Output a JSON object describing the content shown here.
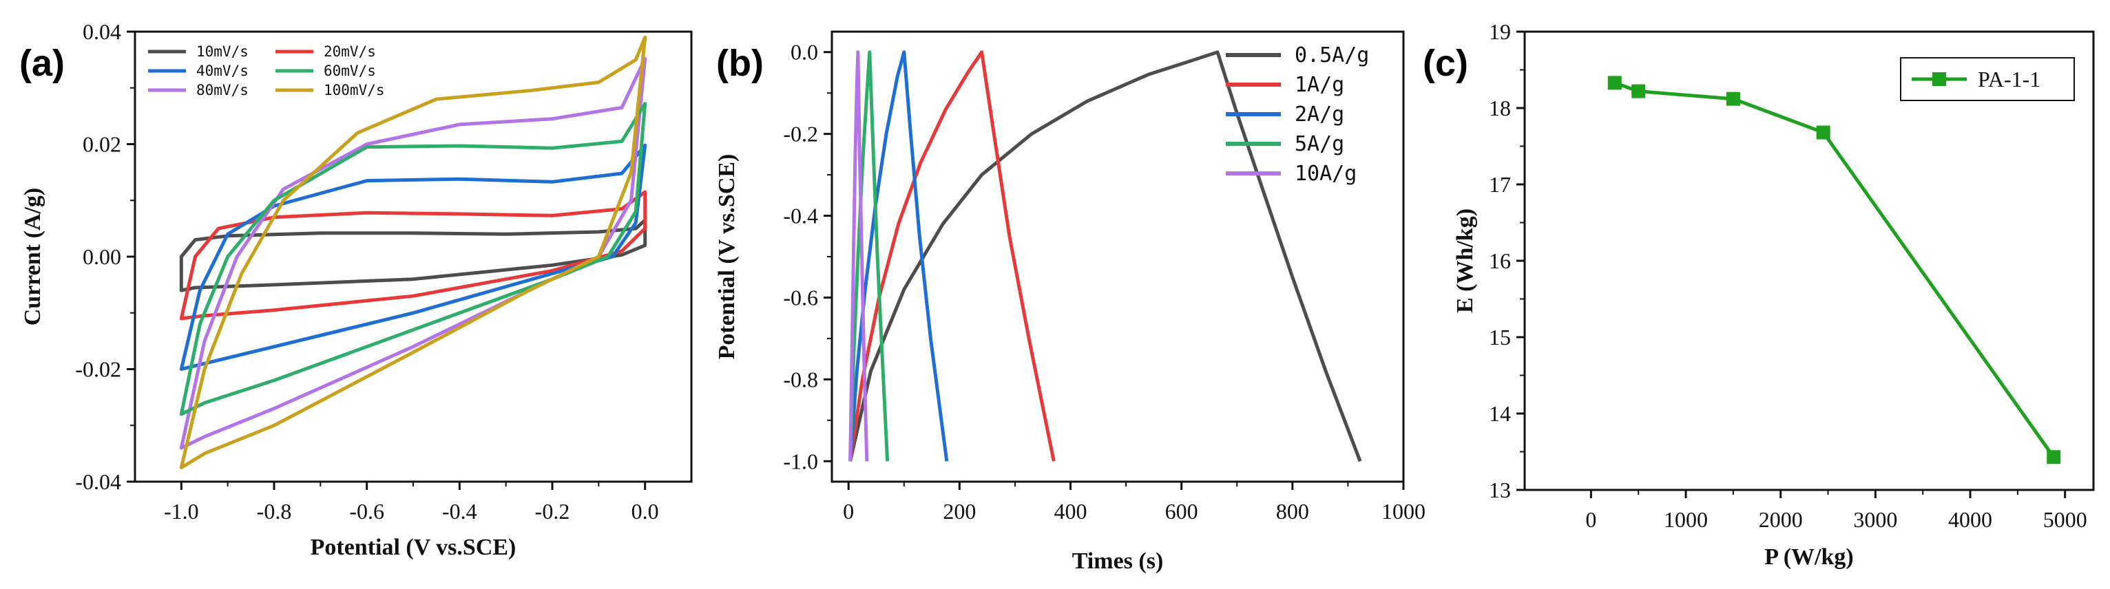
{
  "figure": {
    "panels": [
      "(a)",
      "(b)",
      "(c)"
    ]
  },
  "chart_data": [
    {
      "id": "a",
      "type": "line",
      "panel_label": "(a)",
      "title": "",
      "xlabel": "Potential (V vs.SCE)",
      "ylabel": "Current (A/g)",
      "xlim": [
        -1.1,
        0.1
      ],
      "ylim": [
        -0.04,
        0.04
      ],
      "xticks": [
        -1.0,
        -0.8,
        -0.6,
        -0.4,
        -0.2,
        0.0
      ],
      "xtick_labels": [
        "-1.0",
        "-0.8",
        "-0.6",
        "-0.4",
        "-0.2",
        "0.0"
      ],
      "yticks": [
        -0.04,
        -0.02,
        0.0,
        0.02,
        0.04
      ],
      "ytick_labels": [
        "-0.04",
        "-0.02",
        "0.00",
        "0.02",
        "0.04"
      ],
      "legend_position": "top-left",
      "series": [
        {
          "name": "10mV/s",
          "color": "#4d4d4d",
          "upper": [
            [
              -1.0,
              0.0
            ],
            [
              -0.97,
              0.003
            ],
            [
              -0.9,
              0.0037
            ],
            [
              -0.7,
              0.0042
            ],
            [
              -0.5,
              0.0042
            ],
            [
              -0.3,
              0.004
            ],
            [
              -0.1,
              0.0044
            ],
            [
              -0.02,
              0.005
            ],
            [
              0.0,
              0.0065
            ]
          ],
          "lower": [
            [
              0.0,
              0.0065
            ],
            [
              0.0,
              0.002
            ],
            [
              -0.05,
              0.0003
            ],
            [
              -0.2,
              -0.0015
            ],
            [
              -0.5,
              -0.004
            ],
            [
              -0.8,
              -0.005
            ],
            [
              -0.97,
              -0.0055
            ],
            [
              -1.0,
              -0.006
            ],
            [
              -1.0,
              0.0
            ]
          ]
        },
        {
          "name": "20mV/s",
          "color": "#e8393a",
          "upper": [
            [
              -1.0,
              -0.011
            ],
            [
              -0.97,
              0.0
            ],
            [
              -0.92,
              0.005
            ],
            [
              -0.8,
              0.007
            ],
            [
              -0.6,
              0.0078
            ],
            [
              -0.4,
              0.0076
            ],
            [
              -0.2,
              0.0073
            ],
            [
              -0.05,
              0.0085
            ],
            [
              0.0,
              0.0115
            ]
          ],
          "lower": [
            [
              0.0,
              0.0115
            ],
            [
              0.0,
              0.005
            ],
            [
              -0.05,
              0.001
            ],
            [
              -0.2,
              -0.0025
            ],
            [
              -0.5,
              -0.007
            ],
            [
              -0.8,
              -0.0095
            ],
            [
              -0.95,
              -0.0105
            ],
            [
              -1.0,
              -0.011
            ]
          ]
        },
        {
          "name": "40mV/s",
          "color": "#1f6ed4",
          "upper": [
            [
              -1.0,
              -0.02
            ],
            [
              -0.96,
              -0.006
            ],
            [
              -0.9,
              0.004
            ],
            [
              -0.8,
              0.009
            ],
            [
              -0.6,
              0.0135
            ],
            [
              -0.4,
              0.0138
            ],
            [
              -0.2,
              0.0133
            ],
            [
              -0.05,
              0.0148
            ],
            [
              0.0,
              0.0198
            ]
          ],
          "lower": [
            [
              0.0,
              0.0198
            ],
            [
              -0.02,
              0.006
            ],
            [
              -0.07,
              0.0
            ],
            [
              -0.2,
              -0.003
            ],
            [
              -0.5,
              -0.01
            ],
            [
              -0.8,
              -0.016
            ],
            [
              -0.95,
              -0.019
            ],
            [
              -1.0,
              -0.02
            ]
          ]
        },
        {
          "name": "80mV/s",
          "color": "#b274e6",
          "upper": [
            [
              -1.0,
              -0.034
            ],
            [
              -0.95,
              -0.015
            ],
            [
              -0.88,
              0.0
            ],
            [
              -0.78,
              0.012
            ],
            [
              -0.6,
              0.02
            ],
            [
              -0.4,
              0.0235
            ],
            [
              -0.2,
              0.0245
            ],
            [
              -0.05,
              0.0265
            ],
            [
              0.0,
              0.0352
            ]
          ],
          "lower": [
            [
              0.0,
              0.0352
            ],
            [
              -0.03,
              0.01
            ],
            [
              -0.1,
              0.0
            ],
            [
              -0.25,
              -0.006
            ],
            [
              -0.5,
              -0.016
            ],
            [
              -0.8,
              -0.027
            ],
            [
              -0.95,
              -0.032
            ],
            [
              -1.0,
              -0.034
            ]
          ]
        },
        {
          "name": "60mV/s",
          "color": "#2fad6a",
          "upper": [
            [
              -1.0,
              -0.028
            ],
            [
              -0.96,
              -0.012
            ],
            [
              -0.9,
              0.0
            ],
            [
              -0.8,
              0.01
            ],
            [
              -0.6,
              0.0195
            ],
            [
              -0.4,
              0.0197
            ],
            [
              -0.2,
              0.0193
            ],
            [
              -0.05,
              0.0205
            ],
            [
              0.0,
              0.0272
            ]
          ],
          "lower": [
            [
              0.0,
              0.0272
            ],
            [
              -0.02,
              0.008
            ],
            [
              -0.08,
              0.0
            ],
            [
              -0.2,
              -0.004
            ],
            [
              -0.5,
              -0.013
            ],
            [
              -0.8,
              -0.022
            ],
            [
              -0.95,
              -0.026
            ],
            [
              -1.0,
              -0.028
            ]
          ]
        },
        {
          "name": "100mV/s",
          "color": "#c8a21e",
          "upper": [
            [
              -1.0,
              -0.0375
            ],
            [
              -0.95,
              -0.02
            ],
            [
              -0.87,
              -0.003
            ],
            [
              -0.78,
              0.01
            ],
            [
              -0.62,
              0.022
            ],
            [
              -0.45,
              0.028
            ],
            [
              -0.25,
              0.0295
            ],
            [
              -0.1,
              0.031
            ],
            [
              -0.02,
              0.035
            ],
            [
              0.0,
              0.039
            ]
          ],
          "lower": [
            [
              0.0,
              0.039
            ],
            [
              -0.03,
              0.015
            ],
            [
              -0.1,
              0.0
            ],
            [
              -0.25,
              -0.006
            ],
            [
              -0.5,
              -0.017
            ],
            [
              -0.8,
              -0.03
            ],
            [
              -0.95,
              -0.035
            ],
            [
              -1.0,
              -0.0375
            ]
          ]
        }
      ]
    },
    {
      "id": "b",
      "type": "line",
      "panel_label": "(b)",
      "title": "",
      "xlabel": "Times (s)",
      "ylabel": "Potential (V vs.SCE)",
      "xlim": [
        -30,
        1000
      ],
      "ylim": [
        -1.05,
        0.05
      ],
      "xticks": [
        0,
        200,
        400,
        600,
        800,
        1000
      ],
      "xtick_labels": [
        "0",
        "200",
        "400",
        "600",
        "800",
        "1000"
      ],
      "yticks": [
        0.0,
        -0.2,
        -0.4,
        -0.6,
        -0.8,
        -1.0
      ],
      "ytick_labels": [
        "0.0",
        "-0.2",
        "-0.4",
        "-0.6",
        "-0.8",
        "-1.0"
      ],
      "legend_position": "top-right",
      "series": [
        {
          "name": "0.5A/g",
          "color": "#4d4d4d",
          "points": [
            [
              3,
              -1.0
            ],
            [
              40,
              -0.78
            ],
            [
              100,
              -0.58
            ],
            [
              170,
              -0.42
            ],
            [
              240,
              -0.3
            ],
            [
              330,
              -0.2
            ],
            [
              430,
              -0.12
            ],
            [
              540,
              -0.055
            ],
            [
              620,
              -0.02
            ],
            [
              665,
              0.0
            ],
            [
              700,
              -0.15
            ],
            [
              750,
              -0.35
            ],
            [
              800,
              -0.55
            ],
            [
              860,
              -0.78
            ],
            [
              922,
              -1.0
            ]
          ]
        },
        {
          "name": "1A/g",
          "color": "#e8393a",
          "points": [
            [
              3,
              -1.0
            ],
            [
              25,
              -0.8
            ],
            [
              55,
              -0.6
            ],
            [
              90,
              -0.42
            ],
            [
              130,
              -0.27
            ],
            [
              175,
              -0.14
            ],
            [
              215,
              -0.05
            ],
            [
              240,
              0.0
            ],
            [
              262,
              -0.2
            ],
            [
              290,
              -0.45
            ],
            [
              325,
              -0.7
            ],
            [
              370,
              -1.0
            ]
          ]
        },
        {
          "name": "2A/g",
          "color": "#1f6ed4",
          "points": [
            [
              3,
              -1.0
            ],
            [
              15,
              -0.78
            ],
            [
              30,
              -0.58
            ],
            [
              48,
              -0.38
            ],
            [
              68,
              -0.2
            ],
            [
              88,
              -0.06
            ],
            [
              100,
              0.0
            ],
            [
              112,
              -0.2
            ],
            [
              128,
              -0.45
            ],
            [
              148,
              -0.7
            ],
            [
              177,
              -1.0
            ]
          ]
        },
        {
          "name": "5A/g",
          "color": "#2fad6a",
          "points": [
            [
              3,
              -1.0
            ],
            [
              9,
              -0.75
            ],
            [
              17,
              -0.5
            ],
            [
              25,
              -0.28
            ],
            [
              33,
              -0.1
            ],
            [
              38,
              0.0
            ],
            [
              44,
              -0.22
            ],
            [
              52,
              -0.5
            ],
            [
              61,
              -0.75
            ],
            [
              70,
              -1.0
            ]
          ]
        },
        {
          "name": "10A/g",
          "color": "#b274e6",
          "points": [
            [
              3,
              -1.0
            ],
            [
              6,
              -0.75
            ],
            [
              9,
              -0.5
            ],
            [
              12,
              -0.26
            ],
            [
              15,
              -0.08
            ],
            [
              17,
              0.0
            ],
            [
              20,
              -0.25
            ],
            [
              24,
              -0.5
            ],
            [
              28,
              -0.75
            ],
            [
              33,
              -1.0
            ]
          ]
        }
      ]
    },
    {
      "id": "c",
      "type": "line",
      "panel_label": "(c)",
      "title": "",
      "xlabel": "P (W/kg)",
      "ylabel": "E (Wh/kg)",
      "xlim": [
        -700,
        5300
      ],
      "ylim": [
        13,
        19
      ],
      "xticks": [
        0,
        1000,
        2000,
        3000,
        4000,
        5000
      ],
      "xtick_labels": [
        "0",
        "1000",
        "2000",
        "3000",
        "4000",
        "5000"
      ],
      "yticks": [
        13,
        14,
        15,
        16,
        17,
        18,
        19
      ],
      "ytick_labels": [
        "13",
        "14",
        "15",
        "16",
        "17",
        "18",
        "19"
      ],
      "legend_position": "top-right",
      "series": [
        {
          "name": "PA-1-1",
          "color": "#1fa01f",
          "marker": "square",
          "points": [
            [
              250,
              18.33
            ],
            [
              500,
              18.22
            ],
            [
              1500,
              18.12
            ],
            [
              2450,
              17.68
            ],
            [
              4880,
              13.43
            ]
          ]
        }
      ]
    }
  ]
}
